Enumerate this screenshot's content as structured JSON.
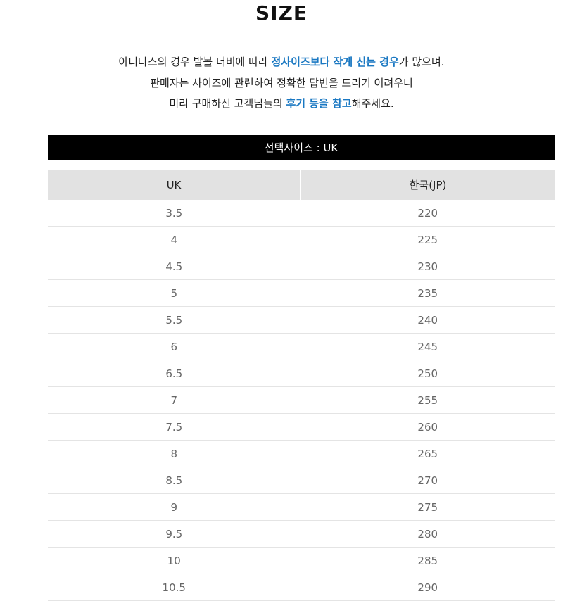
{
  "title": "SIZE",
  "notice": {
    "line1": [
      {
        "text": "아디다스의 경우 발볼 너비에 따라 ",
        "highlight": false
      },
      {
        "text": "정사이즈보다 작게 신는 경우",
        "highlight": true
      },
      {
        "text": "가 많으며.",
        "highlight": false
      }
    ],
    "line2": [
      {
        "text": "판매자는 사이즈에 관련하여 정확한 답변을 드리기 어려우니",
        "highlight": false
      }
    ],
    "line3": [
      {
        "text": "미리 구매하신 고객님들의 ",
        "highlight": false
      },
      {
        "text": "후기 등을 참고",
        "highlight": true
      },
      {
        "text": "해주세요.",
        "highlight": false
      }
    ]
  },
  "selected_size_label": "선택사이즈 : UK",
  "table": {
    "headers": [
      "UK",
      "한국(JP)"
    ],
    "rows": [
      [
        "3.5",
        "220"
      ],
      [
        "4",
        "225"
      ],
      [
        "4.5",
        "230"
      ],
      [
        "5",
        "235"
      ],
      [
        "5.5",
        "240"
      ],
      [
        "6",
        "245"
      ],
      [
        "6.5",
        "250"
      ],
      [
        "7",
        "255"
      ],
      [
        "7.5",
        "260"
      ],
      [
        "8",
        "265"
      ],
      [
        "8.5",
        "270"
      ],
      [
        "9",
        "275"
      ],
      [
        "9.5",
        "280"
      ],
      [
        "10",
        "285"
      ],
      [
        "10.5",
        "290"
      ]
    ]
  },
  "colors": {
    "highlight": "#1a78c2",
    "bar": "#000000",
    "header_bg": "#e2e2e2"
  }
}
